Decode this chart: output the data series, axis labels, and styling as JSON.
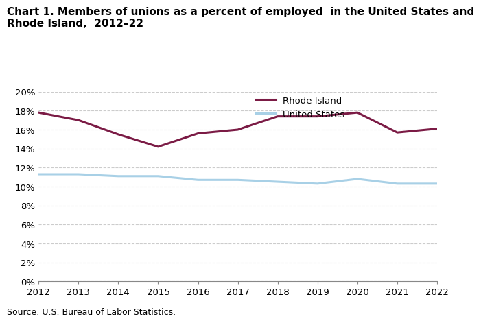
{
  "title_line1": "Chart 1. Members of unions as a percent of employed  in the United States and",
  "title_line2": "Rhode Island,  2012–22",
  "years": [
    2012,
    2013,
    2014,
    2015,
    2016,
    2017,
    2018,
    2019,
    2020,
    2021,
    2022
  ],
  "rhode_island": [
    17.8,
    17.0,
    15.5,
    14.2,
    15.6,
    16.0,
    17.4,
    17.4,
    17.8,
    15.7,
    16.1
  ],
  "united_states": [
    11.3,
    11.3,
    11.1,
    11.1,
    10.7,
    10.7,
    10.5,
    10.3,
    10.8,
    10.3,
    10.3
  ],
  "ri_color": "#7B1B45",
  "us_color": "#A8D0E6",
  "ri_label": "Rhode Island",
  "us_label": "United States",
  "ylim": [
    0,
    20
  ],
  "yticks": [
    0,
    2,
    4,
    6,
    8,
    10,
    12,
    14,
    16,
    18,
    20
  ],
  "source": "Source: U.S. Bureau of Labor Statistics.",
  "grid_color": "#CCCCCC",
  "line_width": 2.2,
  "title_fontsize": 11,
  "tick_fontsize": 9.5,
  "legend_fontsize": 9.5,
  "source_fontsize": 9
}
